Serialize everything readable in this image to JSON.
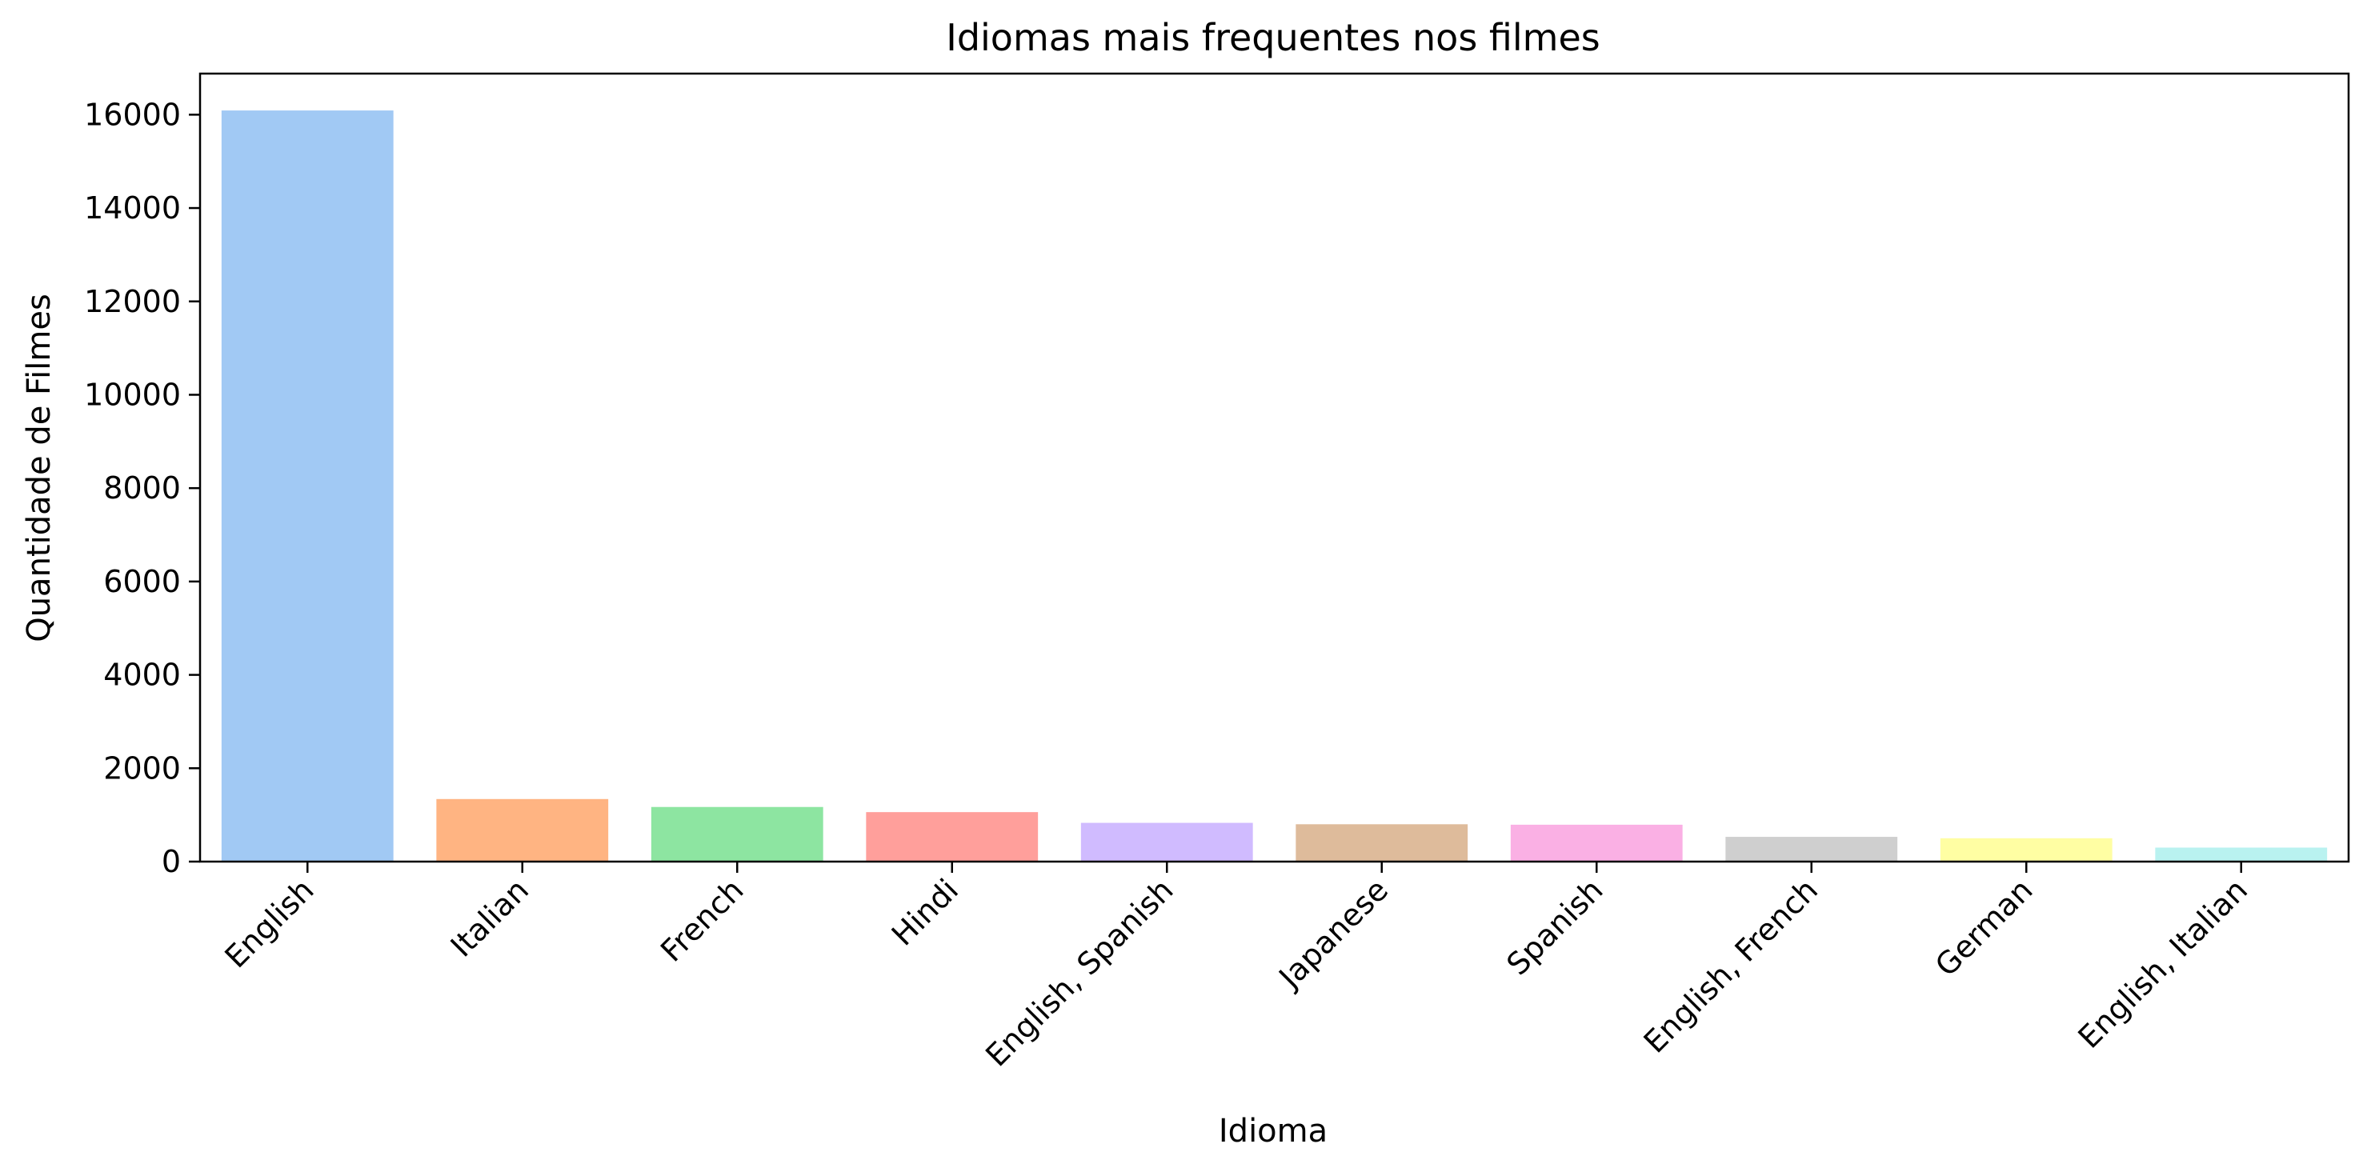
{
  "chart_data": {
    "type": "bar",
    "title": "Idiomas mais frequentes nos filmes",
    "xlabel": "Idioma",
    "ylabel": "Quantidade de Filmes",
    "categories": [
      "English",
      "Italian",
      "French",
      "Hindi",
      "English, Spanish",
      "Japanese",
      "Spanish",
      "English, French",
      "German",
      "English, Italian"
    ],
    "values": [
      16090,
      1340,
      1170,
      1060,
      830,
      800,
      790,
      530,
      500,
      300
    ],
    "colors": [
      "#a1c9f4",
      "#ffb482",
      "#8de5a1",
      "#ff9f9b",
      "#d0bbff",
      "#debb9b",
      "#fab0e4",
      "#cfcfcf",
      "#fffea3",
      "#b9f2f0"
    ],
    "ylim": [
      0,
      16880
    ],
    "yticks": [
      0,
      2000,
      4000,
      6000,
      8000,
      10000,
      12000,
      14000,
      16000
    ],
    "ytick_labels": [
      "0",
      "2000",
      "4000",
      "6000",
      "8000",
      "10000",
      "12000",
      "14000",
      "16000"
    ],
    "grid": false,
    "legend": "none",
    "xtick_rotation_deg": 45
  }
}
